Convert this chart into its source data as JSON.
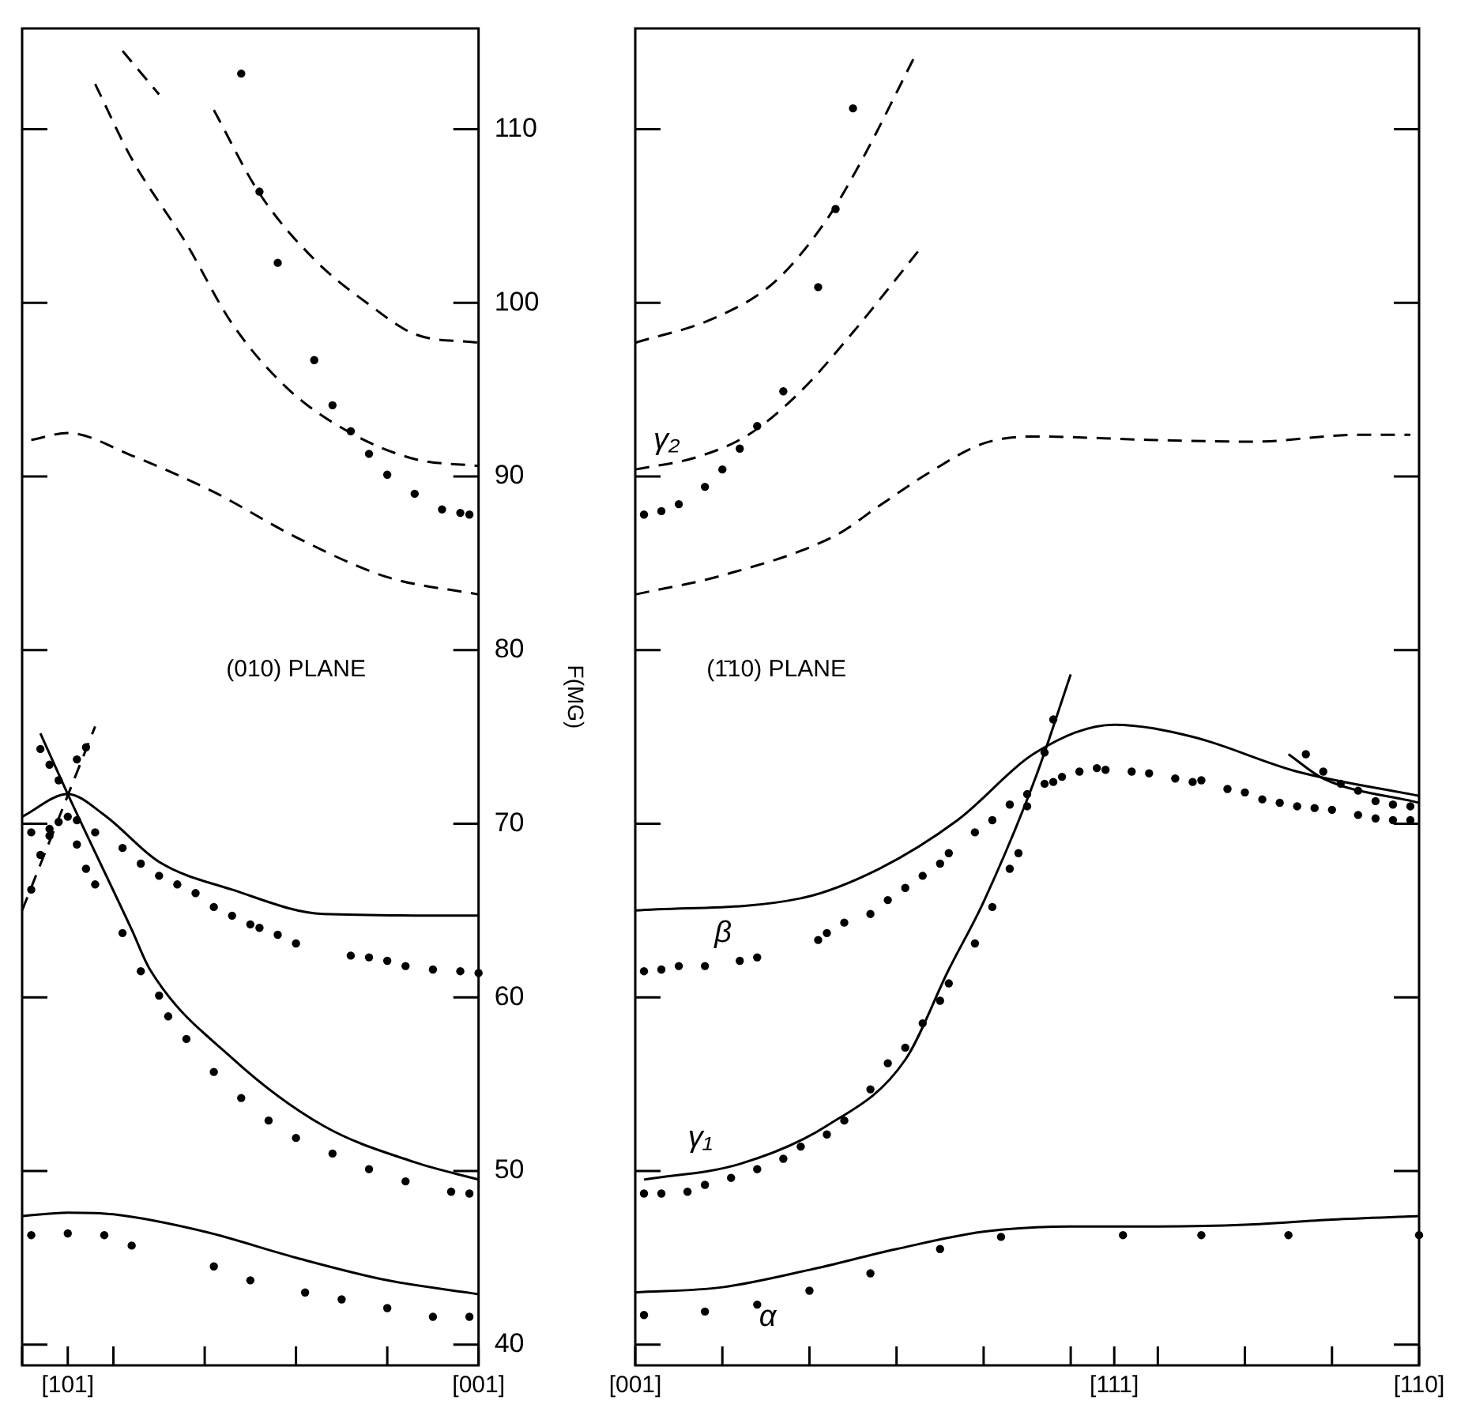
{
  "chart_data": [
    {
      "type": "scatter",
      "ylabel": "F(MG)",
      "ylim": [
        38.8,
        115.8
      ],
      "categories": [
        null,
        null,
        null,
        null,
        null,
        "[101]",
        null,
        null,
        null,
        null,
        null,
        null,
        null,
        null,
        null,
        null,
        null,
        null,
        null,
        null,
        null,
        null,
        null,
        null,
        null,
        null,
        null,
        null,
        null,
        null,
        null,
        null,
        null,
        null,
        null,
        null,
        null,
        null,
        null,
        null,
        null,
        null,
        null,
        null,
        null,
        null,
        null,
        null,
        null,
        null,
        "[001]"
      ],
      "yticks": [
        40,
        50,
        60,
        70,
        80,
        90,
        100,
        110
      ],
      "grid": false,
      "legend": false,
      "annotations": [
        "(010) PLANE"
      ],
      "series": [
        {
          "color": "#000000",
          "marker": "circle",
          "values": [
            null,
            null,
            null,
            null,
            null,
            null,
            null,
            null,
            null,
            null,
            null,
            null,
            null,
            null,
            null,
            null,
            null,
            null,
            null,
            null,
            null,
            null,
            null,
            null,
            113.2,
            null,
            106.4,
            null,
            102.3,
            null,
            null,
            null,
            96.7,
            null,
            94.1,
            null,
            92.6,
            null,
            91.3,
            null,
            90.1,
            null,
            null,
            89.0,
            null,
            null,
            88.1,
            null,
            87.9,
            87.8,
            null
          ]
        },
        {
          "type": "line",
          "color": "#000000",
          "marker": "none",
          "line_style": "dashed",
          "values": [
            null,
            null,
            null,
            null,
            null,
            null,
            null,
            null,
            null,
            null,
            null,
            114.5,
            null,
            null,
            null,
            112.0,
            null,
            null,
            null,
            null,
            null,
            null,
            null,
            null,
            null,
            null,
            null,
            null,
            null,
            null,
            null,
            null,
            null,
            null,
            null,
            null,
            null,
            null,
            null,
            null,
            null,
            null,
            null,
            null,
            null,
            null,
            null,
            null,
            null,
            null,
            null
          ]
        },
        {
          "type": "line",
          "color": "#000000",
          "marker": "none",
          "line_style": "dashed",
          "values": [
            null,
            null,
            null,
            null,
            null,
            null,
            null,
            null,
            null,
            null,
            null,
            null,
            null,
            null,
            null,
            null,
            null,
            null,
            null,
            null,
            null,
            111.1,
            null,
            null,
            null,
            null,
            106.3,
            null,
            null,
            null,
            null,
            null,
            102.5,
            null,
            null,
            null,
            null,
            null,
            99.9,
            null,
            null,
            null,
            null,
            98.2,
            null,
            null,
            null,
            null,
            null,
            null,
            97.7
          ]
        },
        {
          "type": "line",
          "color": "#000000",
          "marker": "none",
          "line_style": "dashed",
          "values": [
            null,
            null,
            null,
            null,
            null,
            null,
            null,
            null,
            112.6,
            null,
            null,
            null,
            108.3,
            null,
            null,
            null,
            null,
            null,
            103.4,
            null,
            null,
            null,
            null,
            98.8,
            null,
            null,
            null,
            null,
            null,
            95.1,
            null,
            null,
            null,
            null,
            null,
            null,
            92.5,
            null,
            null,
            null,
            null,
            null,
            null,
            91.0,
            null,
            null,
            null,
            null,
            null,
            null,
            90.6
          ]
        },
        {
          "type": "line",
          "color": "#000000",
          "marker": "none",
          "line_style": "dashed",
          "values": [
            null,
            92.1,
            null,
            null,
            null,
            92.5,
            null,
            null,
            null,
            null,
            null,
            null,
            91.2,
            null,
            null,
            null,
            null,
            null,
            null,
            null,
            null,
            89.1,
            null,
            null,
            null,
            null,
            null,
            null,
            null,
            null,
            86.5,
            null,
            null,
            null,
            null,
            null,
            null,
            null,
            null,
            null,
            84.2,
            null,
            null,
            null,
            null,
            null,
            null,
            null,
            null,
            null,
            83.2
          ]
        },
        {
          "color": "#000000",
          "marker": "circle",
          "values": [
            null,
            69.5,
            null,
            69.7,
            70.1,
            70.4,
            70.2,
            null,
            69.5,
            null,
            null,
            68.6,
            null,
            67.7,
            null,
            67.0,
            null,
            66.5,
            null,
            66.0,
            null,
            65.2,
            null,
            64.7,
            null,
            64.2,
            64.0,
            null,
            63.6,
            null,
            63.1,
            null,
            null,
            null,
            null,
            null,
            62.4,
            null,
            62.3,
            null,
            62.1,
            null,
            61.8,
            null,
            null,
            61.6,
            null,
            null,
            61.5,
            null,
            61.4
          ]
        },
        {
          "type": "line",
          "color": "#000000",
          "marker": "none",
          "line_style": "solid",
          "values": [
            70.4,
            null,
            null,
            null,
            null,
            71.7,
            null,
            null,
            null,
            70.5,
            null,
            null,
            null,
            null,
            null,
            67.8,
            null,
            null,
            null,
            null,
            null,
            null,
            null,
            66.2,
            null,
            null,
            null,
            null,
            null,
            null,
            null,
            null,
            null,
            64.8,
            null,
            null,
            null,
            null,
            null,
            null,
            null,
            null,
            null,
            null,
            null,
            null,
            null,
            null,
            null,
            null,
            64.7
          ]
        },
        {
          "color": "#000000",
          "marker": "circle",
          "values": [
            null,
            null,
            74.3,
            73.4,
            72.5,
            null,
            68.8,
            67.4,
            66.5,
            null,
            null,
            63.7,
            null,
            61.5,
            null,
            60.1,
            58.9,
            null,
            57.6,
            null,
            null,
            55.7,
            null,
            null,
            54.2,
            null,
            null,
            52.9,
            null,
            null,
            51.9,
            null,
            null,
            null,
            51.0,
            null,
            null,
            null,
            50.1,
            null,
            null,
            null,
            49.4,
            null,
            null,
            null,
            null,
            48.8,
            null,
            48.7,
            null
          ]
        },
        {
          "color": "#000000",
          "marker": "circle",
          "values": [
            null,
            66.2,
            68.2,
            69.3,
            null,
            null,
            73.7,
            74.4,
            null,
            null,
            null,
            null,
            null,
            null,
            null,
            null,
            null,
            null,
            null,
            null,
            null,
            null,
            null,
            null,
            null,
            null,
            null,
            null,
            null,
            null,
            null,
            null,
            null,
            null,
            null,
            null,
            null,
            null,
            null,
            null,
            null,
            null,
            null,
            null,
            null,
            null,
            null,
            null,
            null,
            null,
            null
          ]
        },
        {
          "type": "line",
          "color": "#000000",
          "marker": "none",
          "line_style": "solid",
          "values": [
            null,
            null,
            75.2,
            null,
            null,
            71.7,
            null,
            null,
            null,
            null,
            null,
            null,
            63.9,
            null,
            61.6,
            null,
            null,
            null,
            null,
            null,
            null,
            null,
            null,
            56.5,
            null,
            null,
            null,
            null,
            null,
            null,
            null,
            null,
            null,
            52.6,
            null,
            null,
            null,
            null,
            null,
            null,
            null,
            null,
            null,
            50.5,
            null,
            null,
            null,
            null,
            null,
            null,
            49.5
          ]
        },
        {
          "type": "line",
          "color": "#000000",
          "marker": "none",
          "line_style": "dashed",
          "values": [
            65.0,
            null,
            null,
            null,
            null,
            null,
            null,
            null,
            75.6,
            null,
            null,
            null,
            null,
            null,
            null,
            null,
            null,
            null,
            null,
            null,
            null,
            null,
            null,
            null,
            null,
            null,
            null,
            null,
            null,
            null,
            null,
            null,
            null,
            null,
            null,
            null,
            null,
            null,
            null,
            null,
            null,
            null,
            null,
            null,
            null,
            null,
            null,
            null,
            null,
            null,
            null
          ]
        },
        {
          "color": "#000000",
          "marker": "circle",
          "values": [
            null,
            46.3,
            null,
            null,
            null,
            46.4,
            null,
            null,
            null,
            46.3,
            null,
            null,
            45.7,
            null,
            null,
            null,
            null,
            null,
            null,
            null,
            null,
            44.5,
            null,
            null,
            null,
            43.7,
            null,
            null,
            null,
            null,
            null,
            43.0,
            null,
            null,
            null,
            42.6,
            null,
            null,
            null,
            null,
            42.1,
            null,
            null,
            null,
            null,
            41.6,
            null,
            null,
            null,
            41.6,
            null
          ]
        },
        {
          "type": "line",
          "color": "#000000",
          "marker": "none",
          "line_style": "solid",
          "values": [
            47.4,
            null,
            null,
            null,
            null,
            47.6,
            null,
            null,
            null,
            null,
            47.5,
            null,
            null,
            null,
            null,
            null,
            null,
            null,
            null,
            null,
            46.5,
            null,
            null,
            null,
            null,
            null,
            null,
            null,
            null,
            null,
            45.0,
            null,
            null,
            null,
            null,
            null,
            null,
            null,
            null,
            null,
            43.7,
            null,
            null,
            null,
            null,
            null,
            null,
            null,
            null,
            null,
            42.9
          ]
        }
      ]
    },
    {
      "type": "scatter",
      "ylim": [
        38.8,
        115.8
      ],
      "categories": [
        "[001]",
        null,
        null,
        null,
        null,
        null,
        null,
        null,
        null,
        null,
        null,
        null,
        null,
        null,
        null,
        null,
        null,
        null,
        null,
        null,
        null,
        null,
        null,
        null,
        null,
        null,
        null,
        null,
        null,
        null,
        null,
        null,
        null,
        null,
        null,
        null,
        null,
        null,
        null,
        null,
        null,
        null,
        null,
        null,
        null,
        null,
        null,
        null,
        null,
        null,
        null,
        null,
        null,
        null,
        null,
        "[111]",
        null,
        null,
        null,
        null,
        null,
        null,
        null,
        null,
        null,
        null,
        null,
        null,
        null,
        null,
        null,
        null,
        null,
        null,
        null,
        null,
        null,
        null,
        null,
        null,
        null,
        null,
        null,
        null,
        null,
        null,
        null,
        null,
        null,
        null,
        "[110]"
      ],
      "yticks": [
        40,
        50,
        60,
        70,
        80,
        90,
        100,
        110
      ],
      "tick_labels": "x",
      "grid": false,
      "legend": false,
      "annotations": [
        "(1̄10) PLANE",
        "γ₂",
        "β",
        "γ₁",
        "α"
      ],
      "series": [
        {
          "color": "#000000",
          "marker": "circle",
          "values": [
            null,
            87.8,
            null,
            88.0,
            null,
            88.4,
            null,
            null,
            89.4,
            null,
            90.4,
            null,
            91.6,
            null,
            92.9,
            null,
            null,
            94.9,
            null,
            null,
            null,
            100.9,
            null,
            105.4,
            null,
            111.2,
            null,
            null,
            null,
            null,
            null,
            null,
            null,
            null,
            null,
            null,
            null,
            null,
            null,
            null,
            null,
            null,
            null,
            null,
            null,
            null,
            null,
            null,
            null,
            null,
            null,
            null,
            null,
            null,
            null,
            null,
            null,
            null,
            null,
            null,
            null,
            null,
            null,
            null,
            null,
            null,
            null,
            null,
            null,
            null,
            null,
            null,
            null,
            null,
            null,
            null,
            null,
            null,
            null,
            null,
            null,
            null,
            null,
            null,
            null,
            null,
            null,
            null,
            null,
            null,
            null
          ]
        },
        {
          "type": "line",
          "color": "#000000",
          "marker": "none",
          "line_style": "dashed",
          "values": [
            97.7,
            null,
            null,
            null,
            null,
            null,
            null,
            null,
            null,
            99.1,
            null,
            null,
            null,
            null,
            null,
            null,
            101.2,
            null,
            null,
            null,
            null,
            null,
            104.8,
            null,
            null,
            null,
            108.2,
            null,
            null,
            null,
            null,
            null,
            114.1,
            null,
            null,
            null,
            null,
            null,
            null,
            null,
            null,
            null,
            null,
            null,
            null,
            null,
            null,
            null,
            null,
            null,
            null,
            null,
            null,
            null,
            null,
            null,
            null,
            null,
            null,
            null,
            null,
            null,
            null,
            null,
            null,
            null,
            null,
            null,
            null,
            null,
            null,
            null,
            null,
            null,
            null,
            null,
            null,
            null,
            null,
            null,
            null,
            null,
            null,
            null,
            null,
            null,
            null,
            null,
            null,
            null,
            null
          ]
        },
        {
          "type": "line",
          "color": "#000000",
          "marker": "none",
          "line_style": "dashed",
          "values": [
            90.4,
            null,
            null,
            null,
            null,
            null,
            null,
            91.1,
            null,
            null,
            null,
            null,
            null,
            92.4,
            null,
            null,
            null,
            null,
            null,
            94.9,
            null,
            null,
            null,
            null,
            null,
            98.3,
            null,
            null,
            null,
            null,
            101.4,
            null,
            null,
            103.3,
            null,
            null,
            null,
            null,
            null,
            null,
            null,
            null,
            null,
            null,
            null,
            null,
            null,
            null,
            null,
            null,
            null,
            null,
            null,
            null,
            null,
            null,
            null,
            null,
            null,
            null,
            null,
            null,
            null,
            null,
            null,
            null,
            null,
            null,
            null,
            null,
            null,
            null,
            null,
            null,
            null,
            null,
            null,
            null,
            null,
            null,
            null,
            null,
            null,
            null,
            null,
            null,
            null,
            null,
            null,
            null,
            null
          ]
        },
        {
          "type": "line",
          "color": "#000000",
          "marker": "none",
          "line_style": "dashed",
          "values": [
            83.2,
            null,
            null,
            null,
            null,
            null,
            null,
            null,
            null,
            null,
            84.3,
            null,
            null,
            null,
            null,
            null,
            null,
            null,
            null,
            null,
            null,
            null,
            null,
            86.6,
            null,
            null,
            null,
            null,
            88.3,
            null,
            null,
            null,
            null,
            null,
            90.3,
            null,
            null,
            null,
            null,
            null,
            91.9,
            null,
            null,
            null,
            null,
            null,
            92.3,
            null,
            null,
            null,
            null,
            null,
            null,
            null,
            null,
            null,
            null,
            null,
            null,
            92.1,
            null,
            null,
            null,
            null,
            null,
            null,
            null,
            null,
            null,
            null,
            null,
            92.0,
            null,
            null,
            null,
            null,
            null,
            null,
            null,
            null,
            null,
            null,
            null,
            92.4,
            null,
            null,
            null,
            null,
            null,
            92.4,
            null
          ]
        },
        {
          "color": "#000000",
          "marker": "circle",
          "values": [
            null,
            61.5,
            null,
            61.6,
            null,
            61.8,
            null,
            null,
            61.8,
            null,
            null,
            null,
            62.1,
            null,
            62.3,
            null,
            null,
            null,
            null,
            null,
            null,
            63.3,
            63.7,
            null,
            64.3,
            null,
            null,
            64.8,
            null,
            65.6,
            null,
            66.3,
            null,
            67.0,
            null,
            67.7,
            68.3,
            null,
            null,
            69.5,
            null,
            70.2,
            null,
            71.1,
            null,
            71.7,
            null,
            72.3,
            72.4,
            72.7,
            null,
            73.0,
            null,
            73.2,
            73.1,
            null,
            null,
            73.0,
            null,
            72.9,
            null,
            null,
            72.6,
            null,
            72.4,
            72.5,
            null,
            null,
            72.0,
            null,
            71.8,
            null,
            71.4,
            null,
            71.2,
            null,
            71.0,
            null,
            70.9,
            null,
            70.8,
            null,
            null,
            70.5,
            null,
            70.3,
            null,
            70.2,
            null,
            70.2,
            null
          ]
        },
        {
          "color": "#000000",
          "marker": "circle",
          "values": [
            null,
            null,
            null,
            null,
            null,
            null,
            null,
            null,
            null,
            null,
            null,
            null,
            null,
            null,
            null,
            null,
            null,
            null,
            null,
            null,
            null,
            null,
            null,
            null,
            null,
            null,
            null,
            null,
            null,
            null,
            null,
            null,
            null,
            null,
            null,
            null,
            null,
            null,
            null,
            null,
            null,
            null,
            null,
            null,
            null,
            null,
            null,
            null,
            null,
            null,
            null,
            null,
            null,
            null,
            null,
            null,
            null,
            null,
            null,
            null,
            null,
            null,
            null,
            null,
            null,
            null,
            null,
            null,
            null,
            null,
            null,
            null,
            null,
            null,
            null,
            null,
            null,
            74.0,
            null,
            73.0,
            null,
            72.3,
            null,
            71.9,
            null,
            71.3,
            null,
            71.1,
            null,
            71.0,
            null
          ]
        },
        {
          "type": "line",
          "color": "#000000",
          "marker": "none",
          "line_style": "solid",
          "values": [
            65.0,
            null,
            null,
            null,
            null,
            null,
            null,
            null,
            null,
            null,
            null,
            null,
            null,
            null,
            null,
            null,
            null,
            null,
            null,
            65.7,
            null,
            null,
            null,
            null,
            null,
            null,
            null,
            null,
            67.4,
            null,
            null,
            null,
            null,
            null,
            null,
            null,
            null,
            70.2,
            null,
            null,
            null,
            null,
            null,
            null,
            null,
            null,
            74.1,
            null,
            null,
            null,
            null,
            null,
            null,
            null,
            null,
            75.7,
            null,
            null,
            null,
            null,
            null,
            null,
            null,
            null,
            75.0,
            null,
            null,
            null,
            null,
            null,
            null,
            null,
            null,
            null,
            null,
            null,
            73.0,
            null,
            null,
            null,
            null,
            null,
            null,
            null,
            null,
            null,
            null,
            null,
            null,
            null,
            71.6
          ]
        },
        {
          "type": "line",
          "color": "#000000",
          "marker": "none",
          "line_style": "solid",
          "values": [
            null,
            null,
            null,
            null,
            null,
            null,
            null,
            null,
            null,
            null,
            null,
            null,
            null,
            null,
            null,
            null,
            null,
            null,
            null,
            null,
            null,
            null,
            null,
            null,
            null,
            null,
            null,
            null,
            null,
            null,
            null,
            null,
            null,
            null,
            null,
            null,
            null,
            null,
            null,
            null,
            null,
            null,
            null,
            null,
            null,
            null,
            null,
            null,
            null,
            null,
            null,
            null,
            null,
            null,
            null,
            null,
            null,
            null,
            null,
            null,
            null,
            null,
            null,
            null,
            null,
            null,
            null,
            null,
            null,
            null,
            null,
            null,
            null,
            null,
            null,
            74.0,
            null,
            null,
            null,
            72.6,
            null,
            null,
            null,
            null,
            null,
            null,
            null,
            null,
            null,
            null,
            71.2
          ]
        },
        {
          "color": "#000000",
          "marker": "circle",
          "values": [
            null,
            48.7,
            null,
            48.7,
            null,
            null,
            48.8,
            null,
            49.2,
            null,
            null,
            49.6,
            null,
            null,
            50.1,
            null,
            null,
            50.7,
            null,
            51.4,
            null,
            null,
            52.1,
            null,
            52.9,
            null,
            null,
            54.7,
            null,
            56.2,
            null,
            57.1,
            null,
            58.5,
            null,
            59.8,
            60.8,
            null,
            null,
            63.1,
            null,
            65.2,
            null,
            67.4,
            68.3,
            71.0,
            null,
            74.1,
            76.0,
            null,
            null,
            null,
            null,
            null,
            null,
            null,
            null,
            null,
            null,
            null,
            null,
            null,
            null,
            null,
            null,
            null,
            null,
            null,
            null,
            null,
            null,
            null,
            null,
            null,
            null,
            null,
            null,
            null,
            null,
            null,
            null,
            null,
            null,
            null,
            null,
            null,
            null,
            null,
            null,
            null,
            null
          ]
        },
        {
          "type": "line",
          "color": "#000000",
          "marker": "none",
          "line_style": "solid",
          "values": [
            null,
            49.5,
            null,
            null,
            null,
            null,
            null,
            null,
            null,
            null,
            null,
            null,
            50.4,
            null,
            null,
            null,
            null,
            null,
            null,
            null,
            null,
            null,
            52.6,
            null,
            null,
            null,
            null,
            null,
            null,
            null,
            null,
            56.4,
            null,
            null,
            null,
            null,
            61.6,
            null,
            null,
            null,
            65.5,
            null,
            null,
            null,
            null,
            null,
            72.7,
            null,
            null,
            null,
            78.6,
            null,
            null,
            null,
            null,
            null,
            null,
            null,
            null,
            null,
            null,
            null,
            null,
            null,
            null,
            null,
            null,
            null,
            null,
            null,
            null,
            null,
            null,
            null,
            null,
            null,
            null,
            null,
            null,
            null,
            null,
            null,
            null,
            null,
            null,
            null,
            null,
            null,
            null,
            null,
            null
          ]
        },
        {
          "color": "#000000",
          "marker": "circle",
          "values": [
            null,
            41.7,
            null,
            null,
            null,
            null,
            null,
            null,
            41.9,
            null,
            null,
            null,
            null,
            null,
            42.3,
            null,
            null,
            null,
            null,
            null,
            43.1,
            null,
            null,
            null,
            null,
            null,
            null,
            44.1,
            null,
            null,
            null,
            null,
            null,
            null,
            null,
            45.5,
            null,
            null,
            null,
            null,
            null,
            null,
            46.2,
            null,
            null,
            null,
            null,
            null,
            null,
            null,
            null,
            null,
            null,
            null,
            null,
            null,
            46.3,
            null,
            null,
            null,
            null,
            null,
            null,
            null,
            null,
            46.3,
            null,
            null,
            null,
            null,
            null,
            null,
            null,
            null,
            null,
            46.3,
            null,
            null,
            null,
            null,
            null,
            null,
            null,
            null,
            null,
            null,
            null,
            null,
            null,
            null,
            46.3
          ]
        },
        {
          "type": "line",
          "color": "#000000",
          "marker": "none",
          "line_style": "solid",
          "values": [
            43.0,
            null,
            null,
            null,
            null,
            null,
            null,
            null,
            null,
            null,
            43.3,
            null,
            null,
            null,
            null,
            null,
            null,
            null,
            null,
            null,
            44.3,
            null,
            null,
            null,
            null,
            null,
            null,
            null,
            null,
            null,
            45.5,
            null,
            null,
            null,
            null,
            null,
            null,
            null,
            null,
            null,
            46.5,
            null,
            null,
            null,
            null,
            null,
            null,
            null,
            null,
            null,
            46.8,
            null,
            null,
            null,
            null,
            null,
            null,
            null,
            null,
            null,
            46.8,
            null,
            null,
            null,
            null,
            null,
            null,
            null,
            null,
            null,
            46.9,
            null,
            null,
            null,
            null,
            null,
            null,
            null,
            null,
            null,
            47.2,
            null,
            null,
            null,
            null,
            null,
            null,
            null,
            null,
            null,
            47.4
          ]
        }
      ]
    }
  ]
}
